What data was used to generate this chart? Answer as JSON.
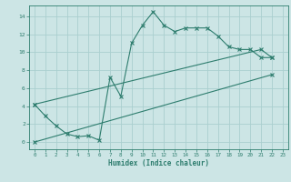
{
  "xlabel": "Humidex (Indice chaleur)",
  "bg_color": "#cce5e5",
  "grid_color": "#aacfcf",
  "line_color": "#2e7d6e",
  "xlim": [
    -0.5,
    23.5
  ],
  "ylim": [
    -0.8,
    15.2
  ],
  "xticks": [
    0,
    1,
    2,
    3,
    4,
    5,
    6,
    7,
    8,
    9,
    10,
    11,
    12,
    13,
    14,
    15,
    16,
    17,
    18,
    19,
    20,
    21,
    22,
    23
  ],
  "yticks": [
    0,
    2,
    4,
    6,
    8,
    10,
    12,
    14
  ],
  "line1_x": [
    0,
    1,
    2,
    3,
    4,
    5,
    6,
    7,
    8,
    9,
    10,
    11,
    12,
    13,
    14,
    15,
    16,
    17,
    18,
    19,
    20,
    21,
    22
  ],
  "line1_y": [
    4.2,
    2.9,
    1.8,
    0.9,
    0.6,
    0.7,
    0.2,
    7.2,
    5.1,
    11.0,
    13.0,
    14.5,
    13.0,
    12.3,
    12.7,
    12.7,
    12.7,
    11.8,
    10.6,
    10.3,
    10.3,
    9.4,
    9.4
  ],
  "line2_x": [
    0,
    21,
    22
  ],
  "line2_y": [
    4.2,
    10.3,
    9.4
  ],
  "line3_x": [
    0,
    22
  ],
  "line3_y": [
    0,
    7.5
  ]
}
